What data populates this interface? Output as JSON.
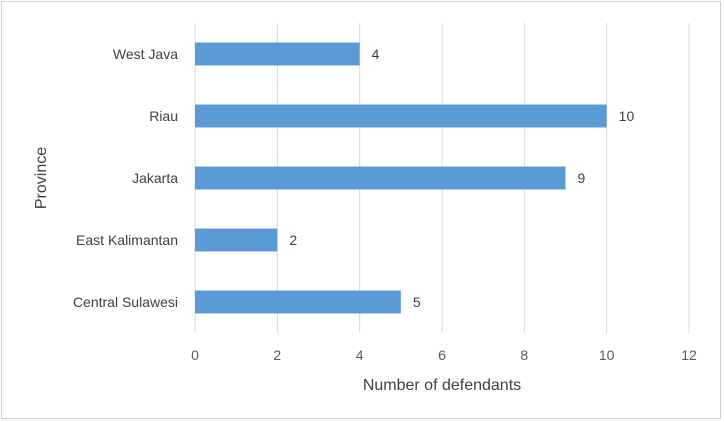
{
  "chart_data": {
    "type": "bar",
    "orientation": "horizontal",
    "categories": [
      "West Java",
      "Riau",
      "Jakarta",
      "East Kalimantan",
      "Central Sulawesi"
    ],
    "values": [
      4,
      10,
      9,
      2,
      5
    ],
    "xlabel": "Number of defendants",
    "ylabel": "Province",
    "xlim": [
      0,
      12
    ],
    "xticks": [
      0,
      2,
      4,
      6,
      8,
      10,
      12
    ],
    "grid": "vertical",
    "data_labels": true,
    "colors": {
      "bar": "#5b9bd5",
      "grid": "#d9d9d9"
    }
  }
}
